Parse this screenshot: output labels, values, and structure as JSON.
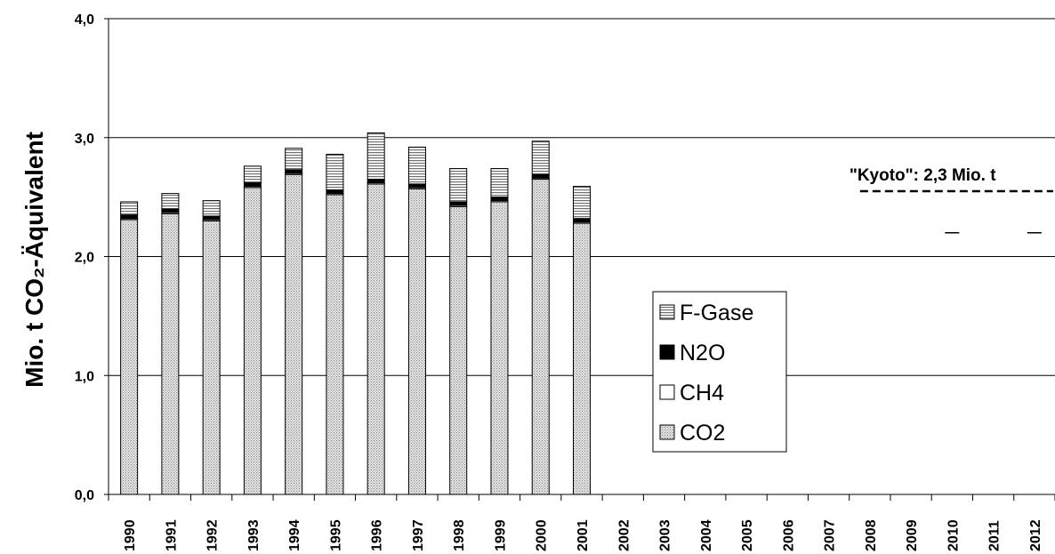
{
  "chart_data": {
    "type": "bar",
    "stacked": true,
    "ylabel": "Mio. t CO₂-Äquivalent",
    "ylim": [
      0,
      4.0
    ],
    "yticks": [
      "0,0",
      "1,0",
      "2,0",
      "3,0",
      "4,0"
    ],
    "grid": true,
    "legend_position": "center-right",
    "categories": [
      "1990",
      "1991",
      "1992",
      "1993",
      "1994",
      "1995",
      "1996",
      "1997",
      "1998",
      "1999",
      "2000",
      "2001",
      "2002",
      "2003",
      "2004",
      "2005",
      "2006",
      "2007",
      "2008",
      "2009",
      "2010",
      "2011",
      "2012"
    ],
    "series": [
      {
        "name": "CO2",
        "pattern": "dotted",
        "color": "#d0d0d0",
        "values": [
          2.31,
          2.36,
          2.3,
          2.58,
          2.69,
          2.52,
          2.61,
          2.57,
          2.42,
          2.46,
          2.65,
          2.28,
          null,
          null,
          null,
          null,
          null,
          null,
          null,
          null,
          null,
          null,
          null
        ]
      },
      {
        "name": "CH4",
        "pattern": "solid",
        "color": "#ffffff",
        "values": [
          0.01,
          0.01,
          0.01,
          0.01,
          0.01,
          0.01,
          0.01,
          0.01,
          0.01,
          0.01,
          0.01,
          0.01,
          null,
          null,
          null,
          null,
          null,
          null,
          null,
          null,
          null,
          null,
          null
        ]
      },
      {
        "name": "N2O",
        "pattern": "solid",
        "color": "#000000",
        "values": [
          0.03,
          0.03,
          0.03,
          0.03,
          0.03,
          0.03,
          0.03,
          0.03,
          0.03,
          0.03,
          0.03,
          0.03,
          null,
          null,
          null,
          null,
          null,
          null,
          null,
          null,
          null,
          null,
          null
        ]
      },
      {
        "name": "F-Gase",
        "pattern": "horizontal-stripes",
        "color": "#b8b8b8",
        "values": [
          0.11,
          0.13,
          0.13,
          0.14,
          0.18,
          0.3,
          0.39,
          0.31,
          0.28,
          0.24,
          0.28,
          0.27,
          null,
          null,
          null,
          null,
          null,
          null,
          null,
          null,
          null,
          null,
          null
        ]
      }
    ],
    "legend_order": [
      "F-Gase",
      "N2O",
      "CH4",
      "CO2"
    ],
    "annotations": [
      {
        "text": "\"Kyoto\": 2,3 Mio. t",
        "target_value": 2.3,
        "start_category": "2008",
        "end_category": "2012"
      }
    ]
  }
}
